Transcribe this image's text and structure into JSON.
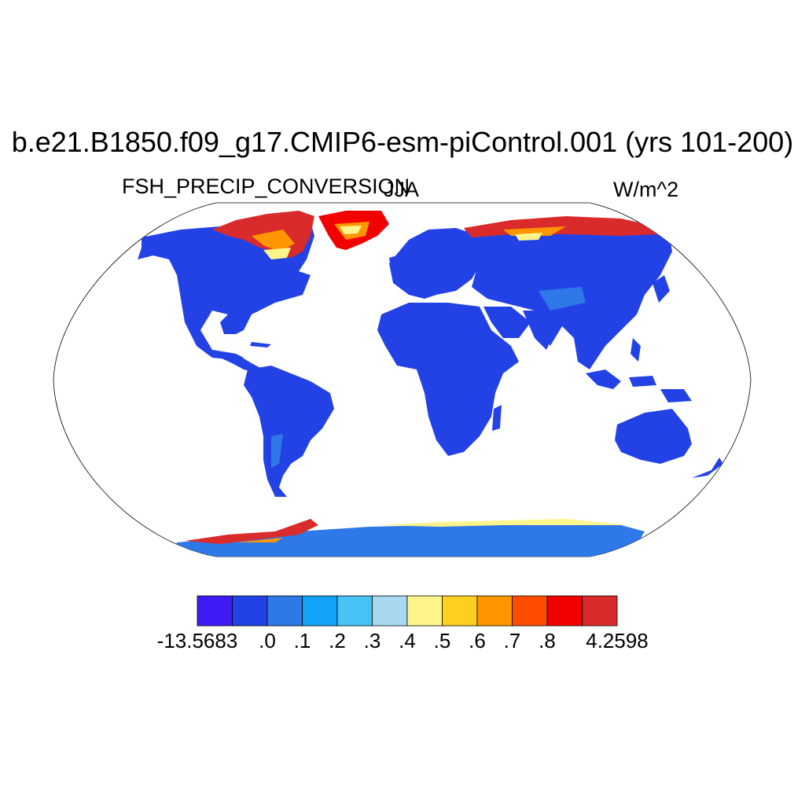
{
  "title": "b.e21.B1850.f09_g17.CMIP6-esm-piControl.001 (yrs 101-200)",
  "variable": "FSH_PRECIP_CONVERSION",
  "season": "JJA",
  "units": "W/m^2",
  "colorbar": {
    "colors": [
      "#3f1af5",
      "#2342e6",
      "#2f78e8",
      "#12a3f8",
      "#46c2f5",
      "#a8d8ef",
      "#fff58a",
      "#ffcf1f",
      "#ff9600",
      "#ff4d00",
      "#f20000",
      "#d92b2b"
    ],
    "labels": [
      "-13.5683",
      ".0",
      ".1",
      ".2",
      ".3",
      ".4",
      ".5",
      ".6",
      ".7",
      ".8",
      "4.2598"
    ]
  },
  "map": {
    "ocean_color": "#ffffff",
    "land_color": "#2342e6",
    "antarctica_color": "#2f78e8"
  }
}
